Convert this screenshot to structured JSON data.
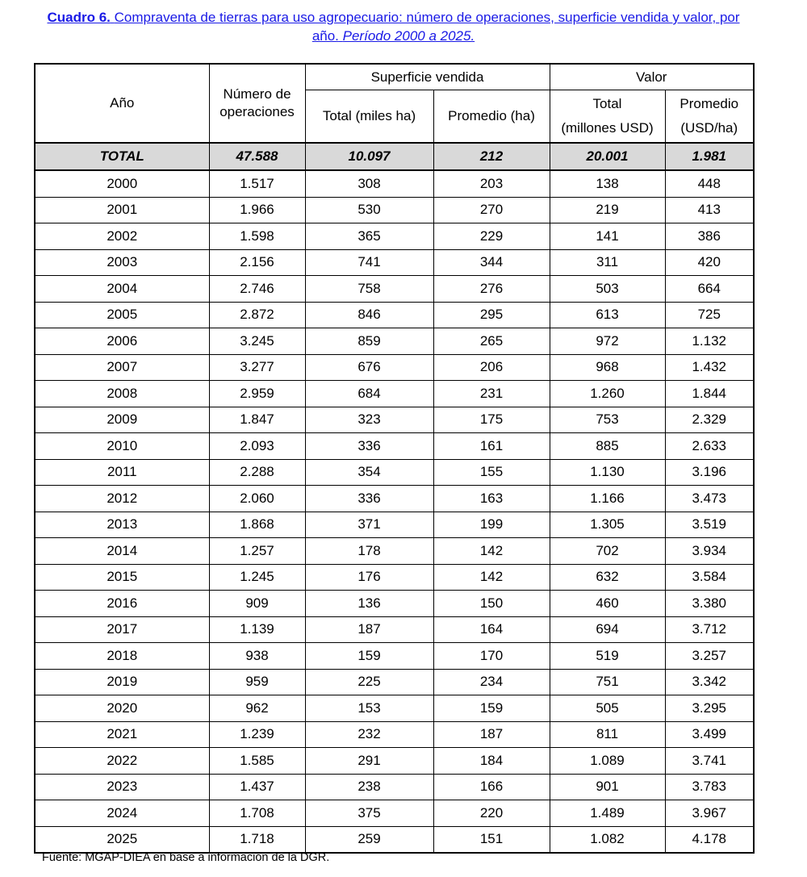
{
  "title": {
    "label": "Cuadro 6.",
    "text": "Compraventa de tierras para uso agropecuario: número de operaciones, superficie vendida y valor, por año.",
    "period": "Período 2000 a 2025."
  },
  "table": {
    "header": {
      "year": "Año",
      "operations": [
        "Número de",
        "operaciones"
      ],
      "surface": "Superficie vendida",
      "value": "Valor",
      "surface_total": "Total (miles ha)",
      "surface_avg": "Promedio (ha)",
      "value_total": [
        "Total",
        "(millones USD)"
      ],
      "value_avg": [
        "Promedio",
        "(USD/ha)"
      ]
    },
    "total": [
      "TOTAL",
      "47.588",
      "10.097",
      "212",
      "20.001",
      "1.981"
    ],
    "rows": [
      [
        "2000",
        "1.517",
        "308",
        "203",
        "138",
        "448"
      ],
      [
        "2001",
        "1.966",
        "530",
        "270",
        "219",
        "413"
      ],
      [
        "2002",
        "1.598",
        "365",
        "229",
        "141",
        "386"
      ],
      [
        "2003",
        "2.156",
        "741",
        "344",
        "311",
        "420"
      ],
      [
        "2004",
        "2.746",
        "758",
        "276",
        "503",
        "664"
      ],
      [
        "2005",
        "2.872",
        "846",
        "295",
        "613",
        "725"
      ],
      [
        "2006",
        "3.245",
        "859",
        "265",
        "972",
        "1.132"
      ],
      [
        "2007",
        "3.277",
        "676",
        "206",
        "968",
        "1.432"
      ],
      [
        "2008",
        "2.959",
        "684",
        "231",
        "1.260",
        "1.844"
      ],
      [
        "2009",
        "1.847",
        "323",
        "175",
        "753",
        "2.329"
      ],
      [
        "2010",
        "2.093",
        "336",
        "161",
        "885",
        "2.633"
      ],
      [
        "2011",
        "2.288",
        "354",
        "155",
        "1.130",
        "3.196"
      ],
      [
        "2012",
        "2.060",
        "336",
        "163",
        "1.166",
        "3.473"
      ],
      [
        "2013",
        "1.868",
        "371",
        "199",
        "1.305",
        "3.519"
      ],
      [
        "2014",
        "1.257",
        "178",
        "142",
        "702",
        "3.934"
      ],
      [
        "2015",
        "1.245",
        "176",
        "142",
        "632",
        "3.584"
      ],
      [
        "2016",
        "909",
        "136",
        "150",
        "460",
        "3.380"
      ],
      [
        "2017",
        "1.139",
        "187",
        "164",
        "694",
        "3.712"
      ],
      [
        "2018",
        "938",
        "159",
        "170",
        "519",
        "3.257"
      ],
      [
        "2019",
        "959",
        "225",
        "234",
        "751",
        "3.342"
      ],
      [
        "2020",
        "962",
        "153",
        "159",
        "505",
        "3.295"
      ],
      [
        "2021",
        "1.239",
        "232",
        "187",
        "811",
        "3.499"
      ],
      [
        "2022",
        "1.585",
        "291",
        "184",
        "1.089",
        "3.741"
      ],
      [
        "2023",
        "1.437",
        "238",
        "166",
        "901",
        "3.783"
      ],
      [
        "2024",
        "1.708",
        "375",
        "220",
        "1.489",
        "3.967"
      ],
      [
        "2025",
        "1.718",
        "259",
        "151",
        "1.082",
        "4.178"
      ]
    ]
  },
  "footer": "Fuente: MGAP-DIEA en base a información de la DGR."
}
